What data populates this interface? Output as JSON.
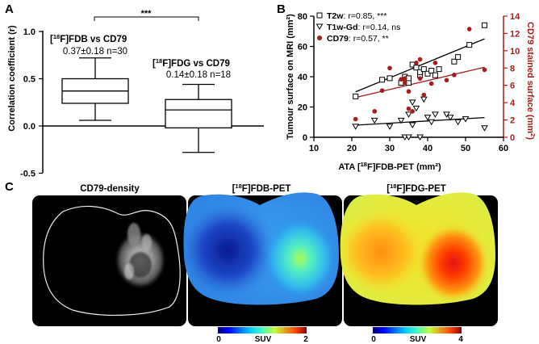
{
  "panel_a": {
    "letter": "A",
    "significance": "***",
    "ylabel": "Correlation coefficient (r)",
    "yticks": [
      "1.0",
      "0.5",
      "0.0",
      "-0.5"
    ],
    "fdb_label_pre": "[",
    "fdb_label_sup": "18",
    "fdb_label_post": "F]FDB vs CD79",
    "fdb_stats": "0.37±0.18 n=30",
    "fdg_label_pre": "[",
    "fdg_label_sup": "18",
    "fdg_label_post": "F]FDG vs CD79",
    "fdg_stats": "0.14±0.18 n=18"
  },
  "panel_b": {
    "letter": "B",
    "ylabel_left": "Tumour surface on MRI (mm²)",
    "ylabel_right_main": "CD79 stained surface (mm",
    "ylabel_right_sup": "2",
    "ylabel_right_end": ")",
    "xlabel_pre": "ATA [",
    "xlabel_sup": "18",
    "xlabel_post": "F]FDB-PET (mm²)",
    "xticks": [
      "10",
      "20",
      "30",
      "40",
      "50",
      "60"
    ],
    "yticks_left": [
      "0",
      "20",
      "40",
      "60",
      "80"
    ],
    "yticks_right": [
      "0",
      "2",
      "4",
      "6",
      "8",
      "10",
      "12",
      "14"
    ],
    "legend": [
      {
        "name": "T2w",
        "stats": ": r=0.85, ***"
      },
      {
        "name": "T1w-Gd",
        "stats": ": r=0.14, ns"
      },
      {
        "name": "CD79",
        "stats": ": r=0.57, **"
      }
    ]
  },
  "panel_c": {
    "letter": "C",
    "titles": {
      "cd79": "CD79-density",
      "fdb_pre": "[",
      "fdb_sup": "18",
      "fdb_post": "F]FDB-PET",
      "fdg_pre": "[",
      "fdg_sup": "18",
      "fdg_post": "F]FDG-PET"
    },
    "colorbar_fdb": {
      "min": "0",
      "label": "SUV",
      "max": "2"
    },
    "colorbar_fdg": {
      "min": "0",
      "label": "SUV",
      "max": "4"
    }
  },
  "colors": {
    "red": "#a61c1c",
    "black": "#000000"
  },
  "chart_data": [
    {
      "type": "box",
      "panel": "A",
      "categories": [
        "[18F]FDB vs CD79",
        "[18F]FDG vs CD79"
      ],
      "boxes": [
        {
          "name": "[18F]FDB vs CD79",
          "min": 0.06,
          "q1": 0.24,
          "median": 0.37,
          "q3": 0.5,
          "max": 0.72
        },
        {
          "name": "[18F]FDG vs CD79",
          "min": -0.28,
          "q1": -0.02,
          "median": 0.17,
          "q3": 0.28,
          "max": 0.44
        }
      ],
      "ylim": [
        -0.5,
        1.0
      ],
      "ylabel": "Correlation coefficient (r)",
      "annotation": "***"
    },
    {
      "type": "scatter",
      "panel": "B",
      "xlabel": "ATA [18F]FDB-PET (mm²)",
      "ylabel": "Tumour surface on MRI (mm²)",
      "ylabel_right": "CD79 stained surface (mm²)",
      "xlim": [
        10,
        60
      ],
      "ylim": [
        0,
        80
      ],
      "ylim_right": [
        0,
        14
      ],
      "series": [
        {
          "name": "T2w",
          "marker": "square-open",
          "axis": "left",
          "x": [
            21,
            28,
            30,
            33,
            34,
            35,
            35,
            36,
            37,
            38,
            38,
            39,
            40,
            41,
            42,
            43,
            47,
            48,
            51,
            55
          ],
          "y": [
            27,
            38,
            39,
            36,
            40,
            36,
            39,
            48,
            46,
            41,
            43,
            45,
            42,
            44,
            41,
            45,
            50,
            53,
            61,
            74
          ],
          "fit": [
            [
              21,
              30
            ],
            [
              55,
              65
            ]
          ]
        },
        {
          "name": "T1w-Gd",
          "marker": "triangle-open",
          "axis": "left",
          "x": [
            21,
            26,
            30,
            33,
            34,
            35,
            35,
            36,
            36,
            37,
            38,
            39,
            40,
            41,
            42,
            45,
            46,
            48,
            50,
            55
          ],
          "y": [
            7,
            11,
            7,
            11,
            0,
            0,
            15,
            8,
            23,
            19,
            0,
            25,
            13,
            10,
            15,
            15,
            13,
            10,
            12,
            6
          ],
          "fit": [
            [
              21,
              8
            ],
            [
              55,
              13
            ]
          ]
        },
        {
          "name": "CD79",
          "marker": "circle-filled",
          "axis": "right",
          "x": [
            21,
            26,
            28,
            30,
            33,
            34,
            34,
            35,
            35,
            36,
            37,
            38,
            38,
            39,
            41,
            42,
            45,
            47,
            51,
            55
          ],
          "y": [
            2.1,
            3.0,
            5.4,
            8.0,
            6.7,
            6.3,
            6.8,
            5.3,
            3.3,
            3.0,
            8.6,
            9.0,
            6.8,
            4.9,
            6.2,
            8.6,
            6.6,
            7.2,
            12.5,
            7.8
          ],
          "fit": [
            [
              21,
              4.6
            ],
            [
              55,
              8.1
            ]
          ]
        }
      ],
      "legend": [
        "T2w: r=0.85, ***",
        "T1w-Gd: r=0.14, ns",
        "CD79: r=0.57, **"
      ]
    }
  ]
}
